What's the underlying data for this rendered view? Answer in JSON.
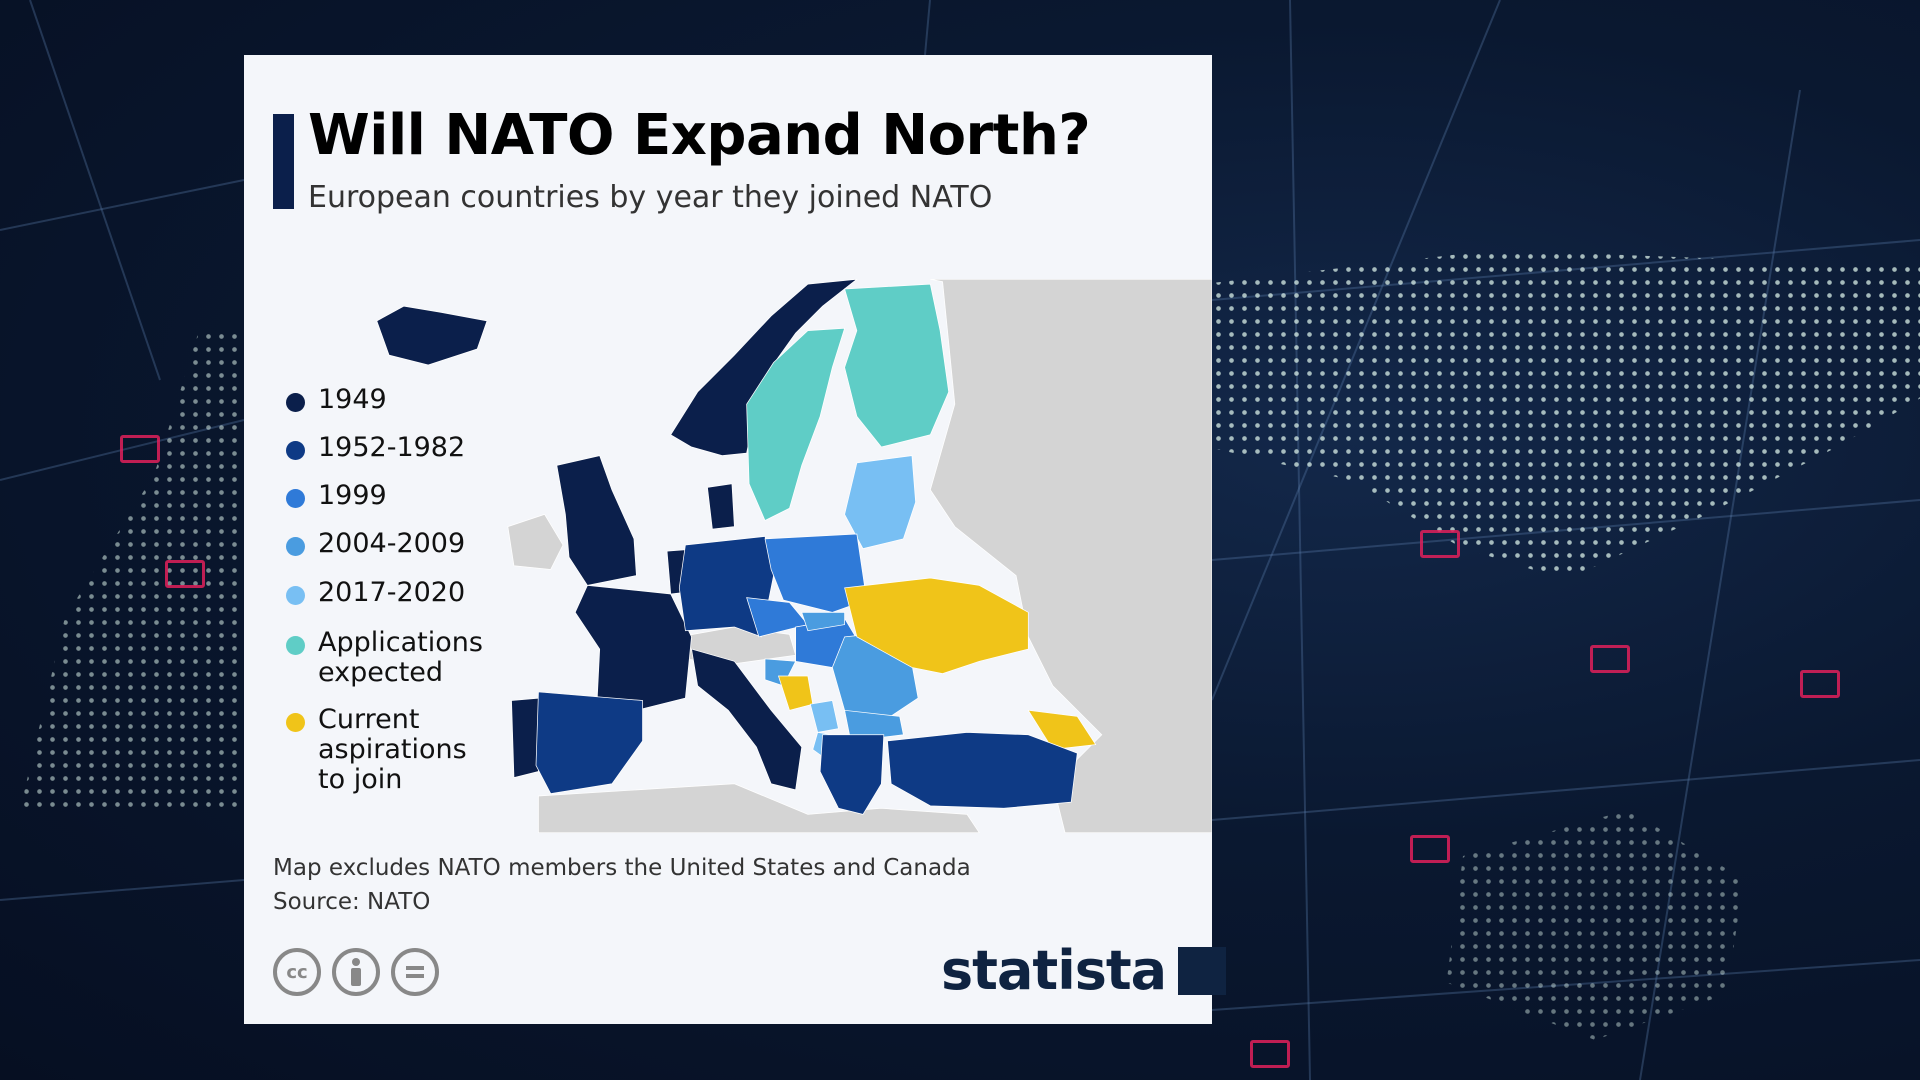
{
  "infographic": {
    "title": "Will NATO Expand North?",
    "subtitle": "European countries by year they joined NATO",
    "legend": [
      {
        "label": "1949",
        "color": "#0b1f4b"
      },
      {
        "label": "1952-1982",
        "color": "#0e3a85"
      },
      {
        "label": "1999",
        "color": "#2f7ad8"
      },
      {
        "label": "2004-2009",
        "color": "#4a9ce0"
      },
      {
        "label": "2017-2020",
        "color": "#78bff3"
      },
      {
        "label": "Applications expected",
        "color": "#5fcdc6"
      },
      {
        "label": "Current aspirations to join",
        "color": "#f0c419"
      }
    ],
    "non_member_color": "#d4d4d4",
    "note": "Map excludes NATO members the United States and Canada",
    "source": "Source: NATO",
    "license_icons": [
      "cc-icon",
      "attribution-icon",
      "no-derivatives-icon"
    ],
    "brand": "statista"
  }
}
